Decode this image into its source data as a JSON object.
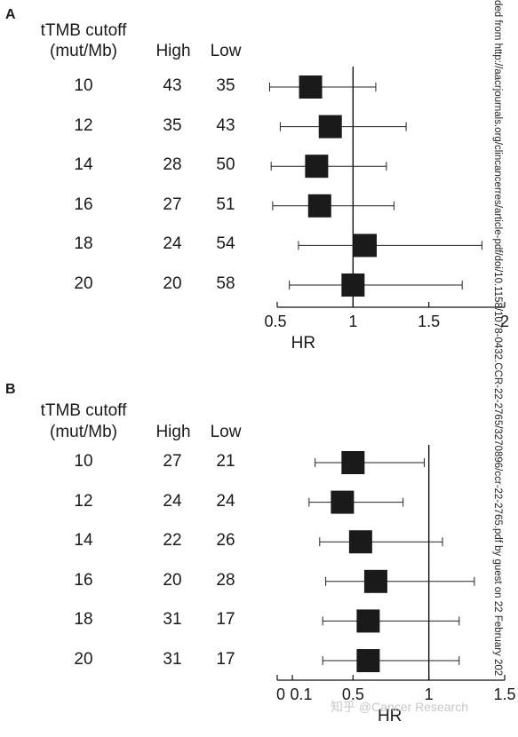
{
  "side_text": "ded from http://aacrjournals.org/clincancerres/article-pdf/doi/10.1158/1078-0432.CCR-22-2765/3270896/ccr-22-2765.pdf by guest on 22 February 202",
  "watermark": "知乎 @Cancer Research",
  "chart_data": [
    {
      "panel": "A",
      "type": "forest",
      "columns": [
        "tTMB cutoff\n(mut/Mb)",
        "High",
        "Low"
      ],
      "col_headers": {
        "cutoff_line1": "tTMB cutoff",
        "cutoff_line2": "(mut/Mb)",
        "high": "High",
        "low": "Low"
      },
      "rows": [
        {
          "cutoff": "10",
          "high": "43",
          "low": "35",
          "hr": 0.72,
          "lo": 0.45,
          "hi": 1.15
        },
        {
          "cutoff": "12",
          "high": "35",
          "low": "43",
          "hr": 0.85,
          "lo": 0.52,
          "hi": 1.35
        },
        {
          "cutoff": "14",
          "high": "28",
          "low": "50",
          "hr": 0.76,
          "lo": 0.46,
          "hi": 1.22
        },
        {
          "cutoff": "16",
          "high": "27",
          "low": "51",
          "hr": 0.78,
          "lo": 0.47,
          "hi": 1.27
        },
        {
          "cutoff": "18",
          "high": "24",
          "low": "54",
          "hr": 1.08,
          "lo": 0.64,
          "hi": 1.85
        },
        {
          "cutoff": "20",
          "high": "20",
          "low": "58",
          "hr": 1.0,
          "lo": 0.58,
          "hi": 1.72
        }
      ],
      "xlabel": "HR",
      "xlim": [
        0.5,
        2
      ],
      "xticks": [
        0.5,
        1,
        1.5,
        2
      ],
      "xtick_labels": [
        "0.5",
        "1",
        "1.5",
        "2"
      ],
      "ref_line": 1
    },
    {
      "panel": "B",
      "type": "forest",
      "col_headers": {
        "cutoff_line1": "tTMB cutoff",
        "cutoff_line2": "(mut/Mb)",
        "high": "High",
        "low": "Low"
      },
      "rows": [
        {
          "cutoff": "10",
          "high": "27",
          "low": "21",
          "hr": 0.5,
          "lo": 0.25,
          "hi": 0.97
        },
        {
          "cutoff": "12",
          "high": "24",
          "low": "24",
          "hr": 0.43,
          "lo": 0.21,
          "hi": 0.83
        },
        {
          "cutoff": "14",
          "high": "22",
          "low": "26",
          "hr": 0.55,
          "lo": 0.28,
          "hi": 1.09
        },
        {
          "cutoff": "16",
          "high": "20",
          "low": "28",
          "hr": 0.65,
          "lo": 0.32,
          "hi": 1.3
        },
        {
          "cutoff": "18",
          "high": "31",
          "low": "17",
          "hr": 0.6,
          "lo": 0.3,
          "hi": 1.2
        },
        {
          "cutoff": "20",
          "high": "31",
          "low": "17",
          "hr": 0.6,
          "lo": 0.3,
          "hi": 1.2
        }
      ],
      "xlabel": "HR",
      "xlim": [
        0,
        1.5
      ],
      "xticks": [
        0,
        0.1,
        0.5,
        1,
        1.5
      ],
      "xtick_labels": [
        "0",
        "0.1",
        "0.5",
        "1",
        "1.5"
      ],
      "ref_line": 1
    }
  ]
}
